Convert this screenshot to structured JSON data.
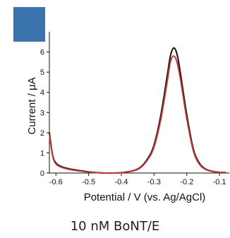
{
  "panel": {
    "accent_color": "#3a72ad"
  },
  "caption": "10 nM BoNT/E",
  "chart_data": {
    "type": "line",
    "xlabel": "Potential / V (vs. Ag/AgCl)",
    "ylabel": "Current / μA",
    "xlim": [
      -0.62,
      -0.07
    ],
    "ylim": [
      0,
      7
    ],
    "x_ticks": [
      {
        "value": -0.6,
        "label": "-0.6"
      },
      {
        "value": -0.5,
        "label": "-0.5"
      },
      {
        "value": -0.4,
        "label": "-0.4"
      },
      {
        "value": -0.3,
        "label": "-0.3"
      },
      {
        "value": -0.2,
        "label": "-0.2"
      },
      {
        "value": -0.1,
        "label": "-0.1"
      }
    ],
    "y_ticks": [
      {
        "value": 0,
        "label": "0"
      },
      {
        "value": 1,
        "label": "1"
      },
      {
        "value": 2,
        "label": "2"
      },
      {
        "value": 3,
        "label": "3"
      },
      {
        "value": 4,
        "label": "4"
      },
      {
        "value": 5,
        "label": "5"
      },
      {
        "value": 6,
        "label": "6"
      }
    ],
    "series": [
      {
        "color": "#111111",
        "x": [
          -0.62,
          -0.61,
          -0.6,
          -0.58,
          -0.55,
          -0.5,
          -0.45,
          -0.4,
          -0.35,
          -0.32,
          -0.3,
          -0.28,
          -0.26,
          -0.25,
          -0.24,
          -0.23,
          -0.22,
          -0.2,
          -0.18,
          -0.16,
          -0.14,
          -0.12,
          -0.1,
          -0.08
        ],
        "y": [
          2.0,
          0.9,
          0.5,
          0.3,
          0.18,
          0.06,
          0.0,
          0.02,
          0.2,
          0.7,
          1.4,
          2.8,
          4.8,
          5.8,
          6.2,
          5.9,
          5.0,
          2.9,
          1.2,
          0.45,
          0.18,
          0.08,
          0.04,
          0.03
        ]
      },
      {
        "color": "#c0393b",
        "x": [
          -0.62,
          -0.61,
          -0.6,
          -0.58,
          -0.55,
          -0.5,
          -0.45,
          -0.4,
          -0.35,
          -0.32,
          -0.3,
          -0.28,
          -0.26,
          -0.25,
          -0.24,
          -0.23,
          -0.22,
          -0.2,
          -0.18,
          -0.16,
          -0.14,
          -0.12,
          -0.1,
          -0.08
        ],
        "y": [
          1.9,
          0.85,
          0.45,
          0.27,
          0.15,
          0.05,
          0.0,
          0.02,
          0.18,
          0.65,
          1.3,
          2.6,
          4.5,
          5.5,
          5.8,
          5.5,
          4.7,
          2.7,
          1.1,
          0.4,
          0.16,
          0.07,
          0.04,
          0.03
        ]
      }
    ]
  }
}
